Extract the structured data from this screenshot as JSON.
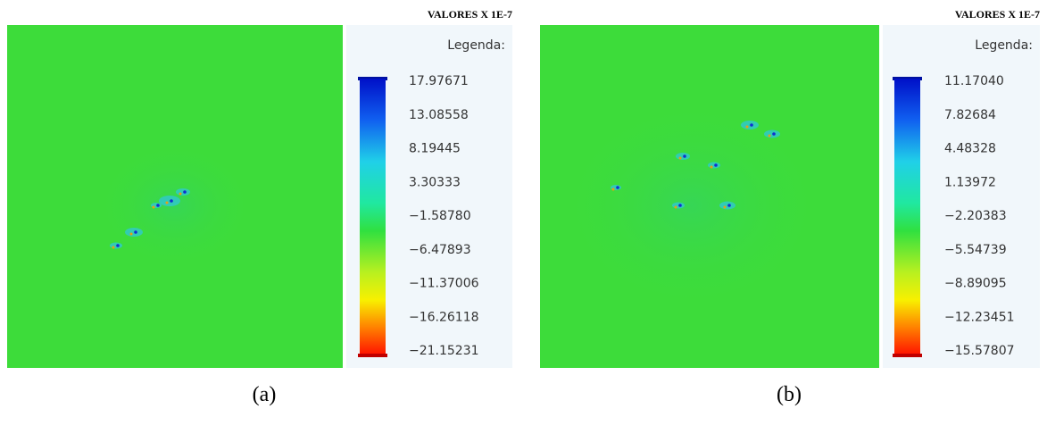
{
  "panels": [
    {
      "header": "VALORES X 1E-7",
      "legend_title": "Legenda:",
      "legend_labels": [
        "17.97671",
        "13.08558",
        "8.19445",
        "3.30333",
        "−1.58780",
        "−6.47893",
        "−11.37006",
        "−16.26118",
        "−21.15231"
      ],
      "caption": "(a)"
    },
    {
      "header": "VALORES X 1E-7",
      "legend_title": "Legenda:",
      "legend_labels": [
        "11.17040",
        "7.82684",
        "4.48328",
        "1.13972",
        "−2.20383",
        "−5.54739",
        "−8.89095",
        "−12.23451",
        "−15.57807"
      ],
      "caption": "(b)"
    }
  ]
}
